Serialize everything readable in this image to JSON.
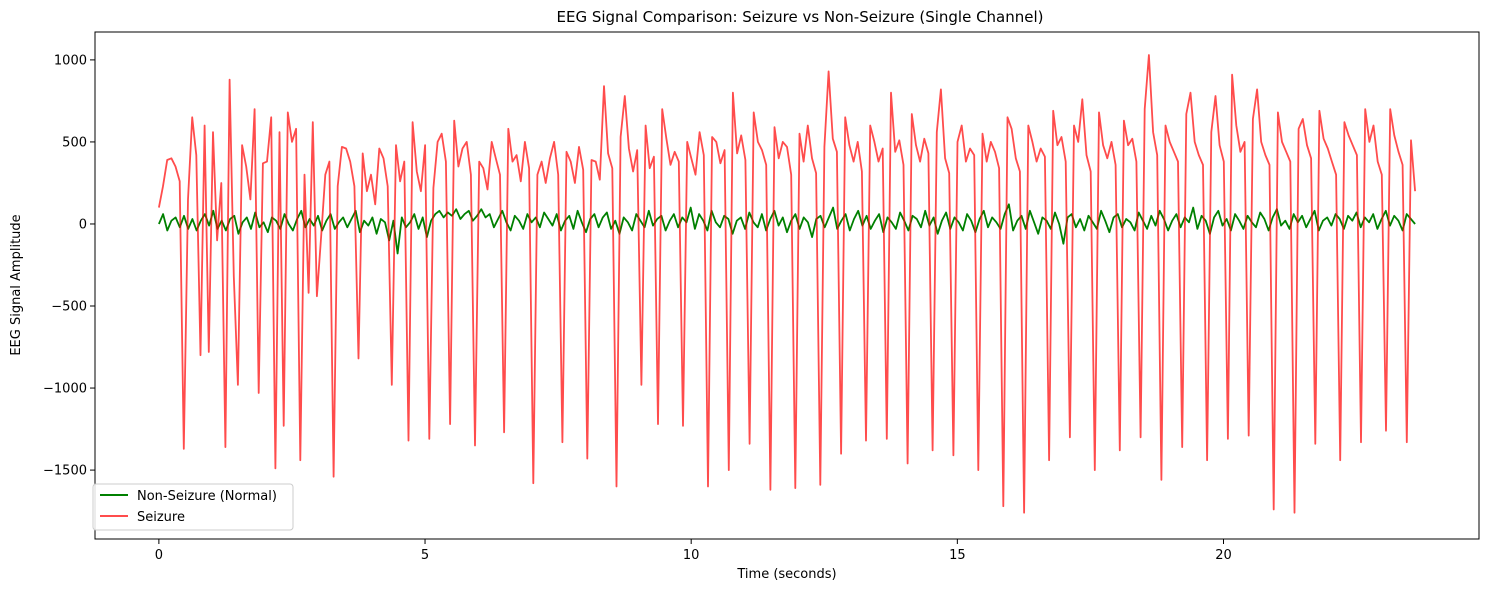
{
  "chart_data": {
    "type": "line",
    "title": "EEG Signal Comparison: Seizure vs Non-Seizure (Single Channel)",
    "xlabel": "Time (seconds)",
    "ylabel": "EEG Signal Amplitude",
    "xlim": [
      -1.2,
      24.8
    ],
    "ylim": [
      -1920,
      1170
    ],
    "xticks": [
      0,
      5,
      10,
      15,
      20
    ],
    "yticks": [
      1000,
      500,
      0,
      -500,
      -1000,
      -1500
    ],
    "ytick_labels": [
      "1000",
      "500",
      "0",
      "−500",
      "−1000",
      "−1500"
    ],
    "grid": false,
    "legend_position": "lower-left",
    "duration_seconds": 23.6,
    "series": [
      {
        "name": "Non-Seizure (Normal)",
        "color": "#008000",
        "opacity": 1.0,
        "values": [
          0,
          60,
          -40,
          20,
          40,
          -20,
          50,
          -30,
          30,
          -40,
          20,
          60,
          -10,
          80,
          -30,
          20,
          -40,
          30,
          50,
          -60,
          10,
          40,
          -30,
          70,
          -20,
          10,
          -50,
          40,
          20,
          -30,
          60,
          0,
          -40,
          30,
          80,
          -20,
          30,
          -10,
          50,
          -40,
          20,
          60,
          -30,
          10,
          40,
          -20,
          30,
          80,
          -50,
          20,
          -10,
          40,
          -60,
          30,
          10,
          -100,
          20,
          -180,
          40,
          -20,
          10,
          60,
          -30,
          40,
          -80,
          20,
          60,
          80,
          40,
          70,
          50,
          90,
          30,
          60,
          80,
          20,
          50,
          90,
          40,
          60,
          -20,
          30,
          80,
          10,
          -40,
          50,
          20,
          -30,
          60,
          10,
          40,
          -20,
          70,
          30,
          -10,
          60,
          -40,
          20,
          50,
          -30,
          80,
          10,
          -50,
          30,
          60,
          -20,
          40,
          70,
          -30,
          20,
          -60,
          40,
          10,
          -40,
          60,
          20,
          -20,
          80,
          -10,
          30,
          50,
          -40,
          20,
          60,
          -20,
          40,
          10,
          100,
          -30,
          60,
          20,
          -40,
          80,
          10,
          -20,
          50,
          30,
          -60,
          20,
          40,
          -30,
          70,
          10,
          -20,
          60,
          -40,
          30,
          80,
          -10,
          40,
          -50,
          20,
          60,
          -30,
          40,
          10,
          -80,
          30,
          50,
          -20,
          40,
          100,
          -30,
          20,
          60,
          -40,
          30,
          80,
          -10,
          50,
          -30,
          20,
          60,
          -50,
          40,
          10,
          -30,
          70,
          20,
          -40,
          50,
          30,
          -20,
          80,
          -10,
          40,
          -60,
          20,
          70,
          -30,
          40,
          10,
          -40,
          60,
          20,
          -50,
          30,
          80,
          -20,
          40,
          10,
          -30,
          60,
          120,
          -40,
          20,
          50,
          -30,
          80,
          10,
          -60,
          40,
          20,
          -30,
          70,
          0,
          -120,
          40,
          60,
          -20,
          30,
          -40,
          50,
          10,
          -30,
          80,
          20,
          -50,
          40,
          60,
          -20,
          30,
          10,
          -40,
          70,
          20,
          -30,
          50,
          -10,
          80,
          30,
          -40,
          20,
          60,
          -20,
          40,
          10,
          100,
          -30,
          50,
          20,
          -60,
          40,
          80,
          -10,
          30,
          -40,
          60,
          20,
          -30,
          50,
          10,
          -20,
          70,
          30,
          -40,
          40,
          90,
          -10,
          20,
          -30,
          60,
          10,
          50,
          -20,
          30,
          80,
          -40,
          20,
          40,
          -10,
          60,
          30,
          -30,
          50,
          20,
          70,
          -20,
          40,
          10,
          60,
          -30,
          30,
          80,
          -10,
          50,
          20,
          -40,
          60,
          30,
          0
        ]
      },
      {
        "name": "Seizure",
        "color": "#ff0000",
        "opacity": 0.7,
        "values": [
          100,
          230,
          390,
          400,
          350,
          260,
          -1370,
          150,
          650,
          420,
          -800,
          600,
          -780,
          560,
          -100,
          250,
          -1360,
          880,
          -320,
          -980,
          480,
          350,
          150,
          700,
          -1030,
          370,
          380,
          650,
          -1490,
          560,
          -1230,
          680,
          500,
          580,
          -1440,
          300,
          -420,
          620,
          -440,
          -80,
          300,
          380,
          -1540,
          230,
          470,
          460,
          380,
          230,
          -820,
          430,
          200,
          300,
          120,
          460,
          400,
          230,
          -980,
          480,
          260,
          380,
          -1320,
          620,
          320,
          200,
          480,
          -1310,
          220,
          500,
          550,
          380,
          -1220,
          630,
          350,
          460,
          500,
          300,
          -1350,
          380,
          340,
          210,
          500,
          400,
          300,
          -1270,
          580,
          380,
          420,
          260,
          500,
          340,
          -1580,
          300,
          380,
          250,
          400,
          500,
          300,
          -1330,
          440,
          380,
          250,
          470,
          330,
          -1430,
          390,
          380,
          270,
          840,
          430,
          340,
          -1600,
          530,
          780,
          460,
          320,
          450,
          -980,
          600,
          340,
          410,
          -1220,
          700,
          520,
          360,
          440,
          380,
          -1230,
          500,
          400,
          300,
          560,
          420,
          -1600,
          530,
          500,
          370,
          450,
          -1500,
          800,
          430,
          540,
          390,
          -1340,
          680,
          500,
          450,
          360,
          -1620,
          590,
          400,
          500,
          470,
          300,
          -1610,
          550,
          380,
          600,
          400,
          310,
          -1590,
          470,
          930,
          520,
          440,
          -1400,
          650,
          480,
          380,
          500,
          320,
          -1320,
          600,
          500,
          380,
          460,
          -1310,
          800,
          440,
          510,
          360,
          -1460,
          670,
          480,
          380,
          520,
          430,
          -1380,
          560,
          820,
          400,
          310,
          -1410,
          500,
          600,
          380,
          460,
          420,
          -1500,
          550,
          380,
          500,
          440,
          340,
          -1720,
          650,
          580,
          400,
          320,
          -1760,
          600,
          500,
          380,
          460,
          410,
          -1440,
          690,
          480,
          530,
          380,
          -1300,
          600,
          500,
          760,
          420,
          320,
          -1500,
          680,
          480,
          400,
          500,
          360,
          -1380,
          630,
          480,
          520,
          380,
          -1300,
          700,
          1030,
          560,
          420,
          -1560,
          600,
          500,
          440,
          380,
          -1360,
          670,
          800,
          500,
          420,
          360,
          -1440,
          560,
          780,
          480,
          380,
          -1310,
          910,
          600,
          440,
          500,
          -1290,
          640,
          820,
          500,
          420,
          360,
          -1740,
          680,
          500,
          440,
          380,
          -1760,
          580,
          640,
          480,
          400,
          -1340,
          690,
          520,
          460,
          380,
          300,
          -1440,
          620,
          540,
          480,
          420,
          -1330,
          700,
          500,
          600,
          380,
          300,
          -1260,
          700,
          540,
          440,
          360,
          -1330,
          510,
          200
        ]
      }
    ]
  }
}
